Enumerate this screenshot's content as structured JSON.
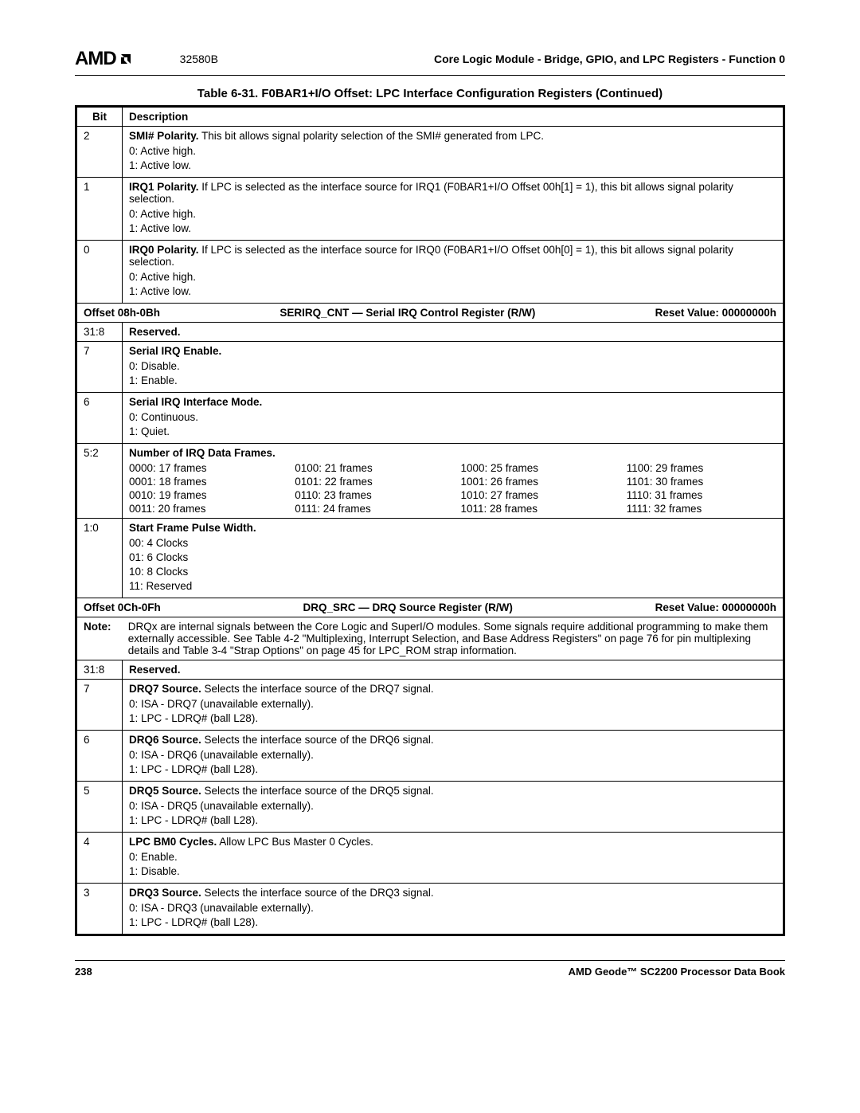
{
  "header": {
    "logo_text": "AMD",
    "doc_number": "32580B",
    "section_title": "Core Logic Module - Bridge, GPIO, and LPC Registers - Function 0"
  },
  "caption": "Table 6-31.  F0BAR1+I/O Offset: LPC Interface Configuration Registers  (Continued)",
  "col_headers": {
    "bit": "Bit",
    "desc": "Description"
  },
  "rows_top": [
    {
      "bit": "2",
      "title": "SMI# Polarity.",
      "text": " This bit allows signal polarity selection of the SMI# generated from LPC.",
      "vals": [
        "0:   Active high.",
        "1:   Active low."
      ]
    },
    {
      "bit": "1",
      "title": "IRQ1 Polarity.",
      "text": " If LPC is selected as the interface source for IRQ1 (F0BAR1+I/O Offset 00h[1] = 1), this bit allows signal polarity selection.",
      "vals": [
        "0:   Active high.",
        "1:   Active low."
      ]
    },
    {
      "bit": "0",
      "title": "IRQ0 Polarity.",
      "text": " If LPC is selected as the interface source for IRQ0 (F0BAR1+I/O Offset 00h[0] = 1), this bit allows signal polarity selection.",
      "vals": [
        "0:   Active high.",
        "1:   Active low."
      ]
    }
  ],
  "section1": {
    "offset": "Offset 08h-0Bh",
    "name": "SERIRQ_CNT — Serial IRQ Control Register (R/W)",
    "reset": "Reset Value: 00000000h"
  },
  "rows_mid": [
    {
      "bit": "31:8",
      "title": "Reserved.",
      "text": "",
      "vals": []
    },
    {
      "bit": "7",
      "title": "Serial IRQ Enable.",
      "text": "",
      "vals": [
        "0:   Disable.",
        "1:   Enable."
      ]
    },
    {
      "bit": "6",
      "title": "Serial IRQ Interface Mode.",
      "text": "",
      "vals": [
        "0:   Continuous.",
        "1:   Quiet."
      ]
    }
  ],
  "frames_row": {
    "bit": "5:2",
    "title": "Number of IRQ Data Frames.",
    "grid": [
      "0000: 17 frames",
      "0100: 21 frames",
      "1000: 25 frames",
      "1100: 29 frames",
      "0001: 18 frames",
      "0101: 22 frames",
      "1001: 26 frames",
      "1101: 30 frames",
      "0010: 19 frames",
      "0110: 23 frames",
      "1010: 27 frames",
      "1110: 31 frames",
      "0011: 20 frames",
      "0111: 24 frames",
      "1011: 28 frames",
      "1111: 32 frames"
    ]
  },
  "pulse_row": {
    "bit": "1:0",
    "title": "Start Frame Pulse Width.",
    "vals": [
      "00:  4 Clocks",
      "01:  6 Clocks",
      "10:  8 Clocks",
      "11:  Reserved"
    ]
  },
  "section2": {
    "offset": "Offset 0Ch-0Fh",
    "name": "DRQ_SRC — DRQ Source Register (R/W)",
    "reset": "Reset Value: 00000000h"
  },
  "note": {
    "label": "Note:",
    "text": "DRQx are internal signals between the Core Logic and SuperI/O modules. Some signals require additional programming to make them externally accessible. See Table 4-2 \"Multiplexing, Interrupt Selection, and Base Address Registers\" on page 76 for pin multiplexing details and Table 3-4 \"Strap Options\" on page 45 for LPC_ROM strap information."
  },
  "rows_bot": [
    {
      "bit": "31:8",
      "title": "Reserved.",
      "text": "",
      "vals": []
    },
    {
      "bit": "7",
      "title": "DRQ7 Source.",
      "text": " Selects the interface source of the DRQ7 signal.",
      "vals": [
        "0:   ISA - DRQ7 (unavailable externally).",
        "1:   LPC - LDRQ# (ball L28)."
      ]
    },
    {
      "bit": "6",
      "title": "DRQ6 Source.",
      "text": " Selects the interface source of the DRQ6 signal.",
      "vals": [
        "0:   ISA - DRQ6 (unavailable externally).",
        "1:   LPC - LDRQ# (ball L28)."
      ]
    },
    {
      "bit": "5",
      "title": "DRQ5 Source.",
      "text": " Selects the interface source of the DRQ5 signal.",
      "vals": [
        "0:   ISA - DRQ5 (unavailable externally).",
        "1:   LPC - LDRQ# (ball L28)."
      ]
    },
    {
      "bit": "4",
      "title": "LPC BM0 Cycles.",
      "text": " Allow LPC Bus Master 0 Cycles.",
      "vals": [
        "0:   Enable.",
        "1:   Disable."
      ]
    },
    {
      "bit": "3",
      "title": "DRQ3 Source.",
      "text": " Selects the interface source of the DRQ3 signal.",
      "vals": [
        "0:   ISA - DRQ3 (unavailable externally).",
        "1:   LPC - LDRQ# (ball L28)."
      ]
    }
  ],
  "footer": {
    "page": "238",
    "book": "AMD Geode™ SC2200  Processor Data Book"
  }
}
